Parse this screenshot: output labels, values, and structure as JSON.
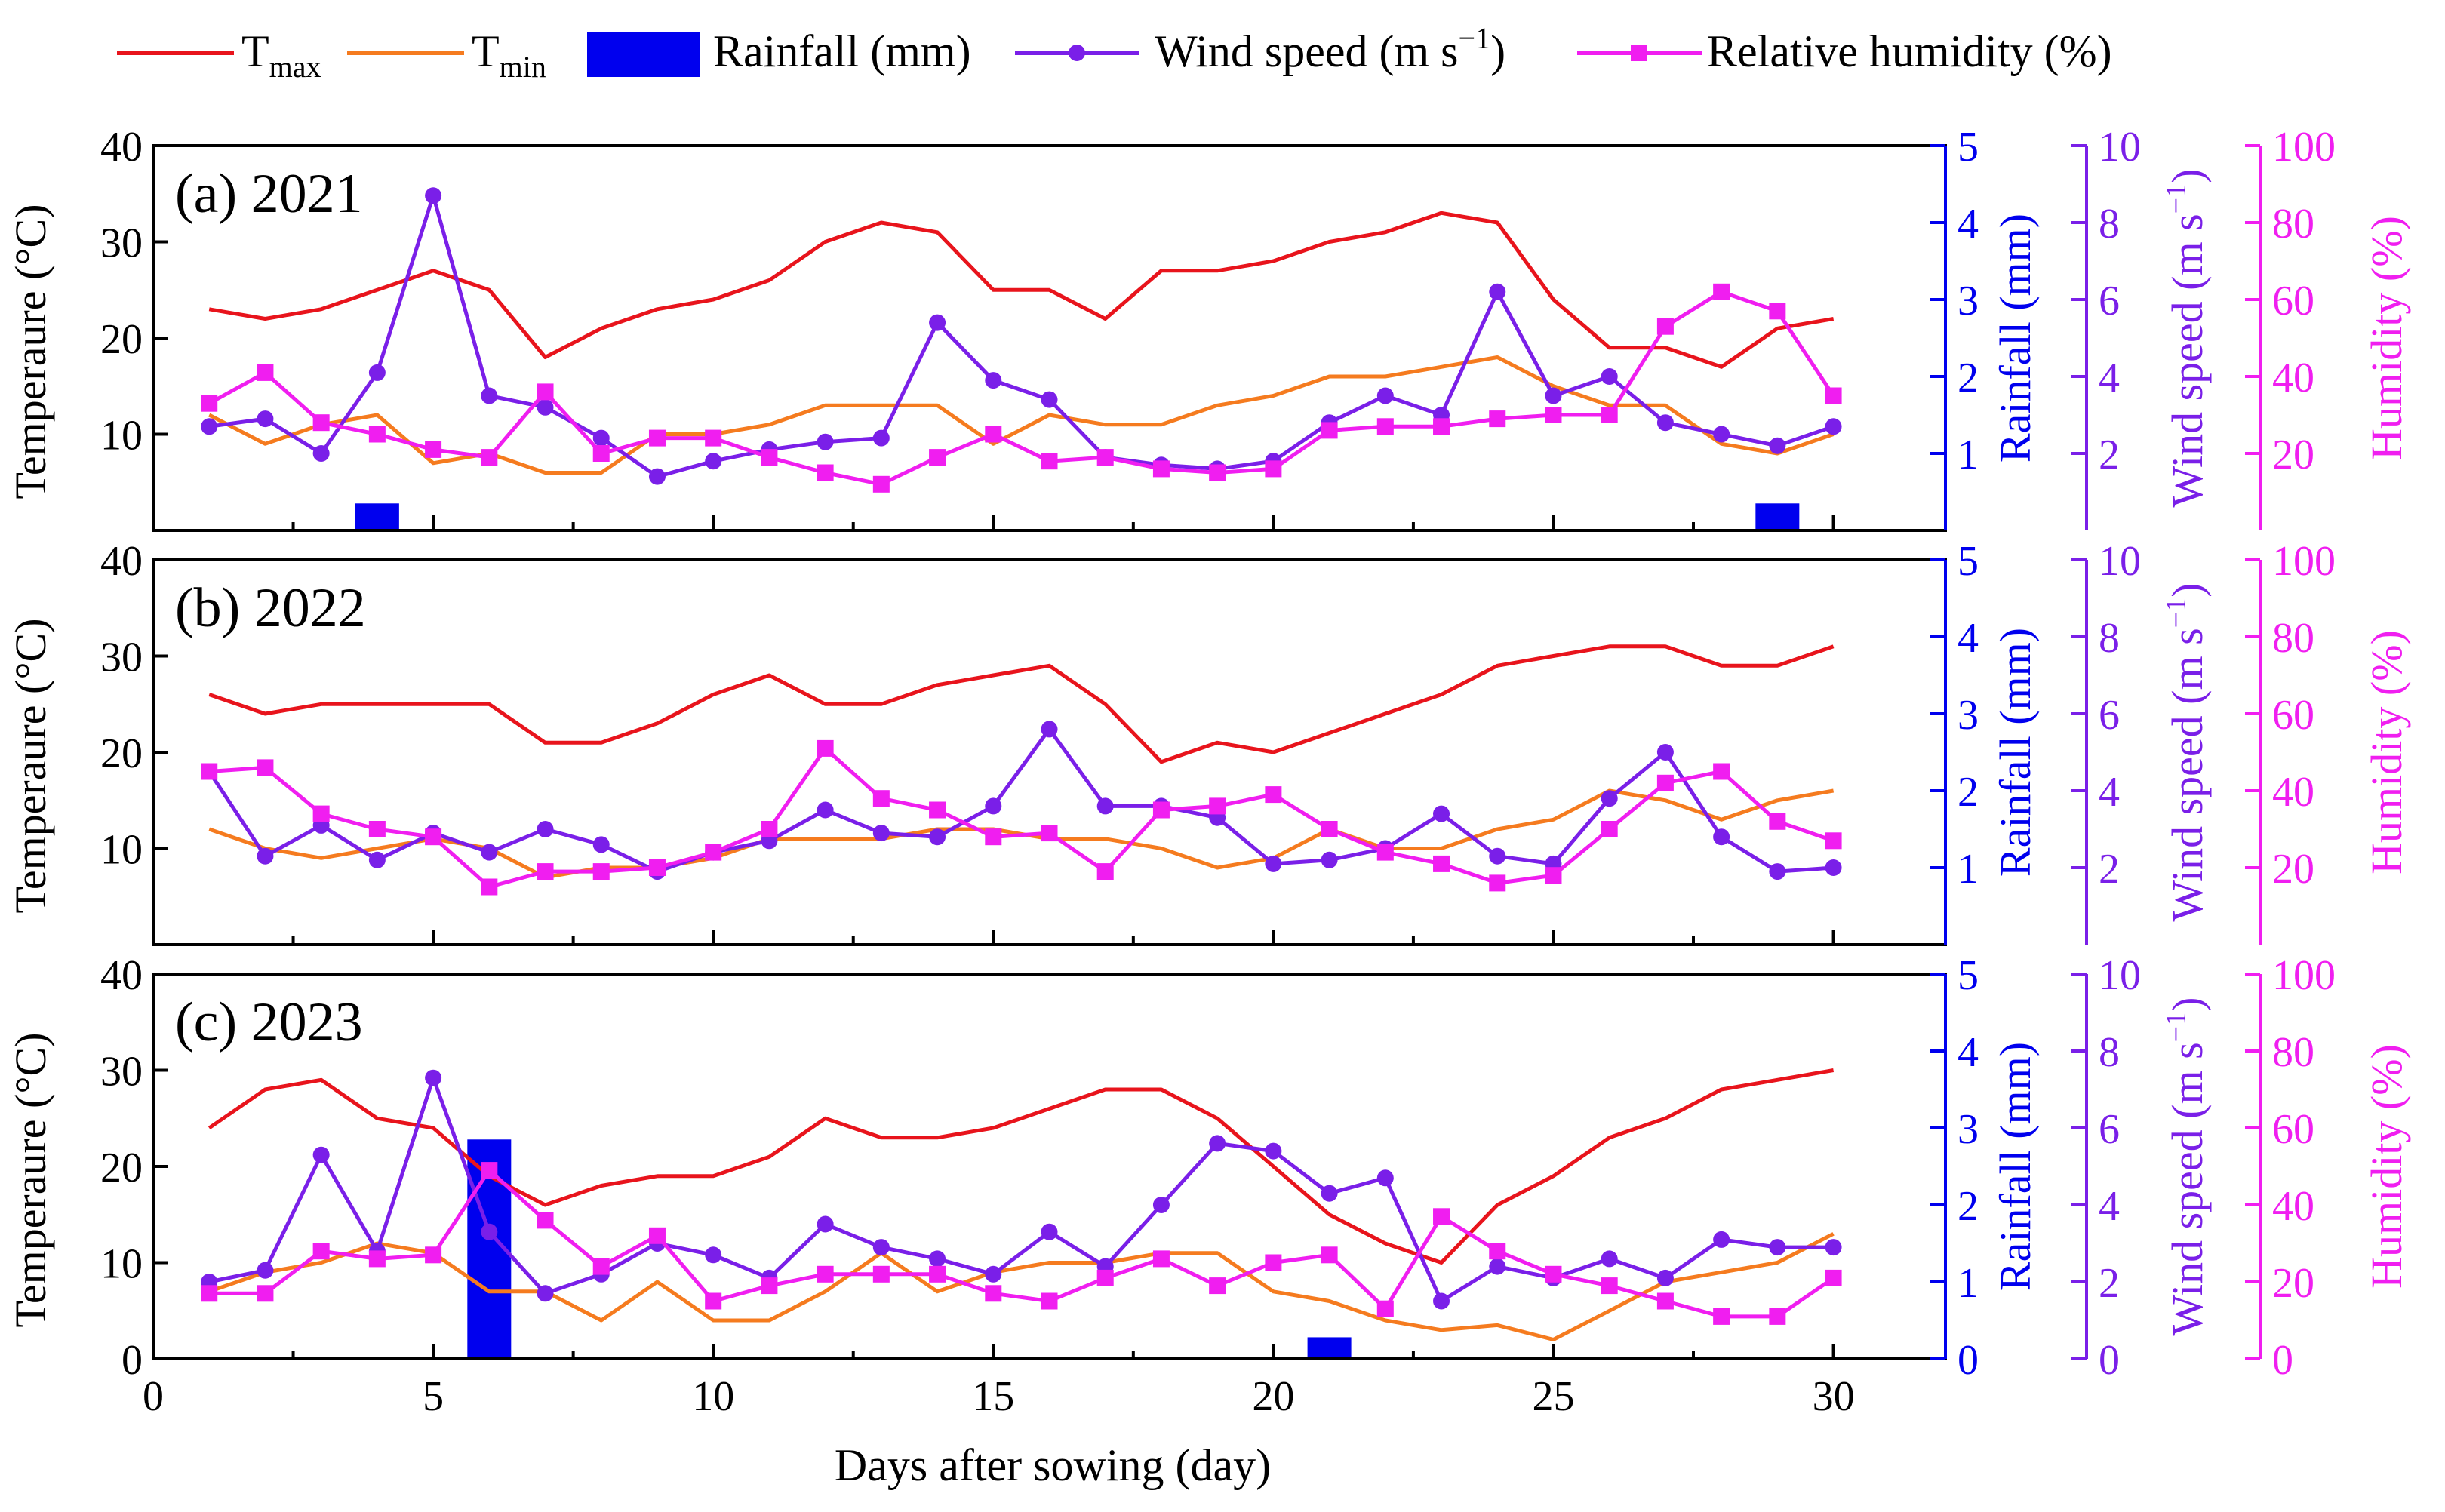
{
  "legend": {
    "tmax_main": "T",
    "tmax_sub": "max",
    "tmin_main": "T",
    "tmin_sub": "min",
    "rainfall": "Rainfall (mm)",
    "wind_main": "Wind speed (m s",
    "wind_sup": "−1",
    "wind_close": ")",
    "humidity": "Relative humidity (%)"
  },
  "axes": {
    "xlabel": "Days after sowing (day)",
    "ylabel_temp": "Temperaure (°C)",
    "ylabel_rain": "Rainfall (mm)",
    "ylabel_wind_main": "Wind speed (m s",
    "ylabel_wind_sup": "−1",
    "ylabel_wind_close": ")",
    "ylabel_hum": "Humidity (%)"
  },
  "colors": {
    "tmax": "#e8141c",
    "tmin": "#f57b1f",
    "rain": "#0000ee",
    "wind": "#7a1fe8",
    "hum": "#f01ef0",
    "axis": "#000000"
  },
  "chart_data": [
    {
      "type": "line",
      "title": "(a) 2021",
      "xlabel": "Days after sowing (day)",
      "ylabel": "Temperaure (°C)",
      "xlim": [
        0,
        32
      ],
      "x_ticks": [
        0,
        5,
        10,
        15,
        20,
        25,
        30
      ],
      "ylim_temp": [
        0,
        40
      ],
      "temp_ticks": [
        10,
        20,
        30,
        40
      ],
      "ylim_rain": [
        0,
        5
      ],
      "rain_ticks": [
        1,
        2,
        3,
        4,
        5
      ],
      "ylim_wind": [
        0,
        10
      ],
      "wind_ticks": [
        2,
        4,
        6,
        8,
        10
      ],
      "ylim_hum": [
        0,
        100
      ],
      "hum_ticks": [
        20,
        40,
        60,
        80,
        100
      ],
      "x": [
        1,
        2,
        3,
        4,
        5,
        6,
        7,
        8,
        9,
        10,
        11,
        12,
        13,
        14,
        15,
        16,
        17,
        18,
        19,
        20,
        21,
        22,
        23,
        24,
        25,
        26,
        27,
        28,
        29,
        30
      ],
      "series": [
        {
          "name": "Tmax",
          "axis": "temp",
          "values": [
            23,
            22,
            23,
            25,
            27,
            25,
            18,
            21,
            23,
            24,
            26,
            30,
            32,
            31,
            25,
            25,
            22,
            27,
            27,
            28,
            30,
            31,
            33,
            32,
            24,
            19,
            19,
            17,
            21,
            22
          ]
        },
        {
          "name": "Tmin",
          "axis": "temp",
          "values": [
            12,
            9,
            11,
            12,
            7,
            8,
            6,
            6,
            10,
            10,
            11,
            13,
            13,
            13,
            9,
            12,
            11,
            11,
            13,
            14,
            16,
            16,
            17,
            18,
            15,
            13,
            13,
            9,
            8,
            10
          ]
        },
        {
          "name": "Wind speed",
          "axis": "wind",
          "values": [
            2.7,
            2.9,
            2.0,
            4.1,
            8.7,
            3.5,
            3.2,
            2.4,
            1.4,
            1.8,
            2.1,
            2.3,
            2.4,
            5.4,
            3.9,
            3.4,
            1.9,
            1.7,
            1.6,
            1.8,
            2.8,
            3.5,
            3.0,
            6.2,
            3.5,
            4.0,
            2.8,
            2.5,
            2.2,
            2.7
          ]
        },
        {
          "name": "Relative humidity",
          "axis": "hum",
          "values": [
            33,
            41,
            28,
            25,
            21,
            19,
            36,
            20,
            24,
            24,
            19,
            15,
            12,
            19,
            25,
            18,
            19,
            16,
            15,
            16,
            26,
            27,
            27,
            29,
            30,
            30,
            53,
            62,
            57,
            35
          ]
        }
      ],
      "rainfall": [
        {
          "day": 4,
          "value": 0.35
        },
        {
          "day": 29,
          "value": 0.35
        }
      ]
    },
    {
      "type": "line",
      "title": "(b) 2022",
      "xlabel": "Days after sowing (day)",
      "ylabel": "Temperaure (°C)",
      "xlim": [
        0,
        32
      ],
      "x_ticks": [
        0,
        5,
        10,
        15,
        20,
        25,
        30
      ],
      "ylim_temp": [
        0,
        40
      ],
      "temp_ticks": [
        10,
        20,
        30,
        40
      ],
      "ylim_rain": [
        0,
        5
      ],
      "rain_ticks": [
        1,
        2,
        3,
        4,
        5
      ],
      "ylim_wind": [
        0,
        10
      ],
      "wind_ticks": [
        2,
        4,
        6,
        8,
        10
      ],
      "ylim_hum": [
        0,
        100
      ],
      "hum_ticks": [
        20,
        40,
        60,
        80,
        100
      ],
      "x": [
        1,
        2,
        3,
        4,
        5,
        6,
        7,
        8,
        9,
        10,
        11,
        12,
        13,
        14,
        15,
        16,
        17,
        18,
        19,
        20,
        21,
        22,
        23,
        24,
        25,
        26,
        27,
        28,
        29,
        30
      ],
      "series": [
        {
          "name": "Tmax",
          "axis": "temp",
          "values": [
            26,
            24,
            25,
            25,
            25,
            25,
            21,
            21,
            23,
            26,
            28,
            25,
            25,
            27,
            28,
            29,
            25,
            19,
            21,
            20,
            22,
            24,
            26,
            29,
            30,
            31,
            31,
            29,
            29,
            31
          ]
        },
        {
          "name": "Tmin",
          "axis": "temp",
          "values": [
            12,
            10,
            9,
            10,
            11,
            10,
            7,
            8,
            8,
            9,
            11,
            11,
            11,
            12,
            12,
            11,
            11,
            10,
            8,
            9,
            12,
            10,
            10,
            12,
            13,
            16,
            15,
            13,
            15,
            16
          ]
        },
        {
          "name": "Wind speed",
          "axis": "wind",
          "values": [
            4.5,
            2.3,
            3.1,
            2.2,
            2.9,
            2.4,
            3.0,
            2.6,
            1.9,
            2.4,
            2.7,
            3.5,
            2.9,
            2.8,
            3.6,
            5.6,
            3.6,
            3.6,
            3.3,
            2.1,
            2.2,
            2.5,
            3.4,
            2.3,
            2.1,
            3.8,
            5.0,
            2.8,
            1.9,
            2.0
          ]
        },
        {
          "name": "Relative humidity",
          "axis": "hum",
          "values": [
            45,
            46,
            34,
            30,
            28,
            15,
            19,
            19,
            20,
            24,
            30,
            51,
            38,
            35,
            28,
            29,
            19,
            35,
            36,
            39,
            30,
            24,
            21,
            16,
            18,
            30,
            42,
            45,
            32,
            27
          ]
        }
      ],
      "rainfall": []
    },
    {
      "type": "line",
      "title": "(c) 2023",
      "xlabel": "Days after sowing (day)",
      "ylabel": "Temperaure (°C)",
      "xlim": [
        0,
        32
      ],
      "x_ticks": [
        0,
        5,
        10,
        15,
        20,
        25,
        30
      ],
      "x_tick_labels": [
        "0",
        "5",
        "10",
        "15",
        "20",
        "25",
        "30"
      ],
      "ylim_temp": [
        0,
        40
      ],
      "temp_ticks": [
        0,
        10,
        20,
        30,
        40
      ],
      "ylim_rain": [
        0,
        5
      ],
      "rain_ticks": [
        0,
        1,
        2,
        3,
        4,
        5
      ],
      "ylim_wind": [
        0,
        10
      ],
      "wind_ticks": [
        0,
        2,
        4,
        6,
        8,
        10
      ],
      "ylim_hum": [
        0,
        100
      ],
      "hum_ticks": [
        0,
        20,
        40,
        60,
        80,
        100
      ],
      "x": [
        1,
        2,
        3,
        4,
        5,
        6,
        7,
        8,
        9,
        10,
        11,
        12,
        13,
        14,
        15,
        16,
        17,
        18,
        19,
        20,
        21,
        22,
        23,
        24,
        25,
        26,
        27,
        28,
        29,
        30
      ],
      "series": [
        {
          "name": "Tmax",
          "axis": "temp",
          "values": [
            24,
            28,
            29,
            25,
            24,
            19,
            16,
            18,
            19,
            19,
            21,
            25,
            23,
            23,
            24,
            26,
            28,
            28,
            25,
            20,
            15,
            12,
            10,
            16,
            19,
            23,
            25,
            28,
            29,
            30
          ]
        },
        {
          "name": "Tmin",
          "axis": "temp",
          "values": [
            7,
            9,
            10,
            12,
            11,
            7,
            7,
            4,
            8,
            4,
            4,
            7,
            11,
            7,
            9,
            10,
            10,
            11,
            11,
            7,
            6,
            4,
            3,
            3.5,
            2,
            5,
            8,
            9,
            10,
            13
          ]
        },
        {
          "name": "Wind speed",
          "axis": "wind",
          "values": [
            2.0,
            2.3,
            5.3,
            2.8,
            7.3,
            3.3,
            1.7,
            2.2,
            3.0,
            2.7,
            2.1,
            3.5,
            2.9,
            2.6,
            2.2,
            3.3,
            2.4,
            4.0,
            5.6,
            5.4,
            4.3,
            4.7,
            1.5,
            2.4,
            2.1,
            2.6,
            2.1,
            3.1,
            2.9,
            2.9
          ]
        },
        {
          "name": "Relative humidity",
          "axis": "hum",
          "values": [
            17,
            17,
            28,
            26,
            27,
            49,
            36,
            24,
            32,
            15,
            19,
            22,
            22,
            22,
            17,
            15,
            21,
            26,
            19,
            25,
            27,
            13,
            37,
            28,
            22,
            19,
            15,
            11,
            11,
            21
          ]
        }
      ],
      "rainfall": [
        {
          "day": 6,
          "value": 2.85
        },
        {
          "day": 21,
          "value": 0.28
        }
      ]
    }
  ]
}
